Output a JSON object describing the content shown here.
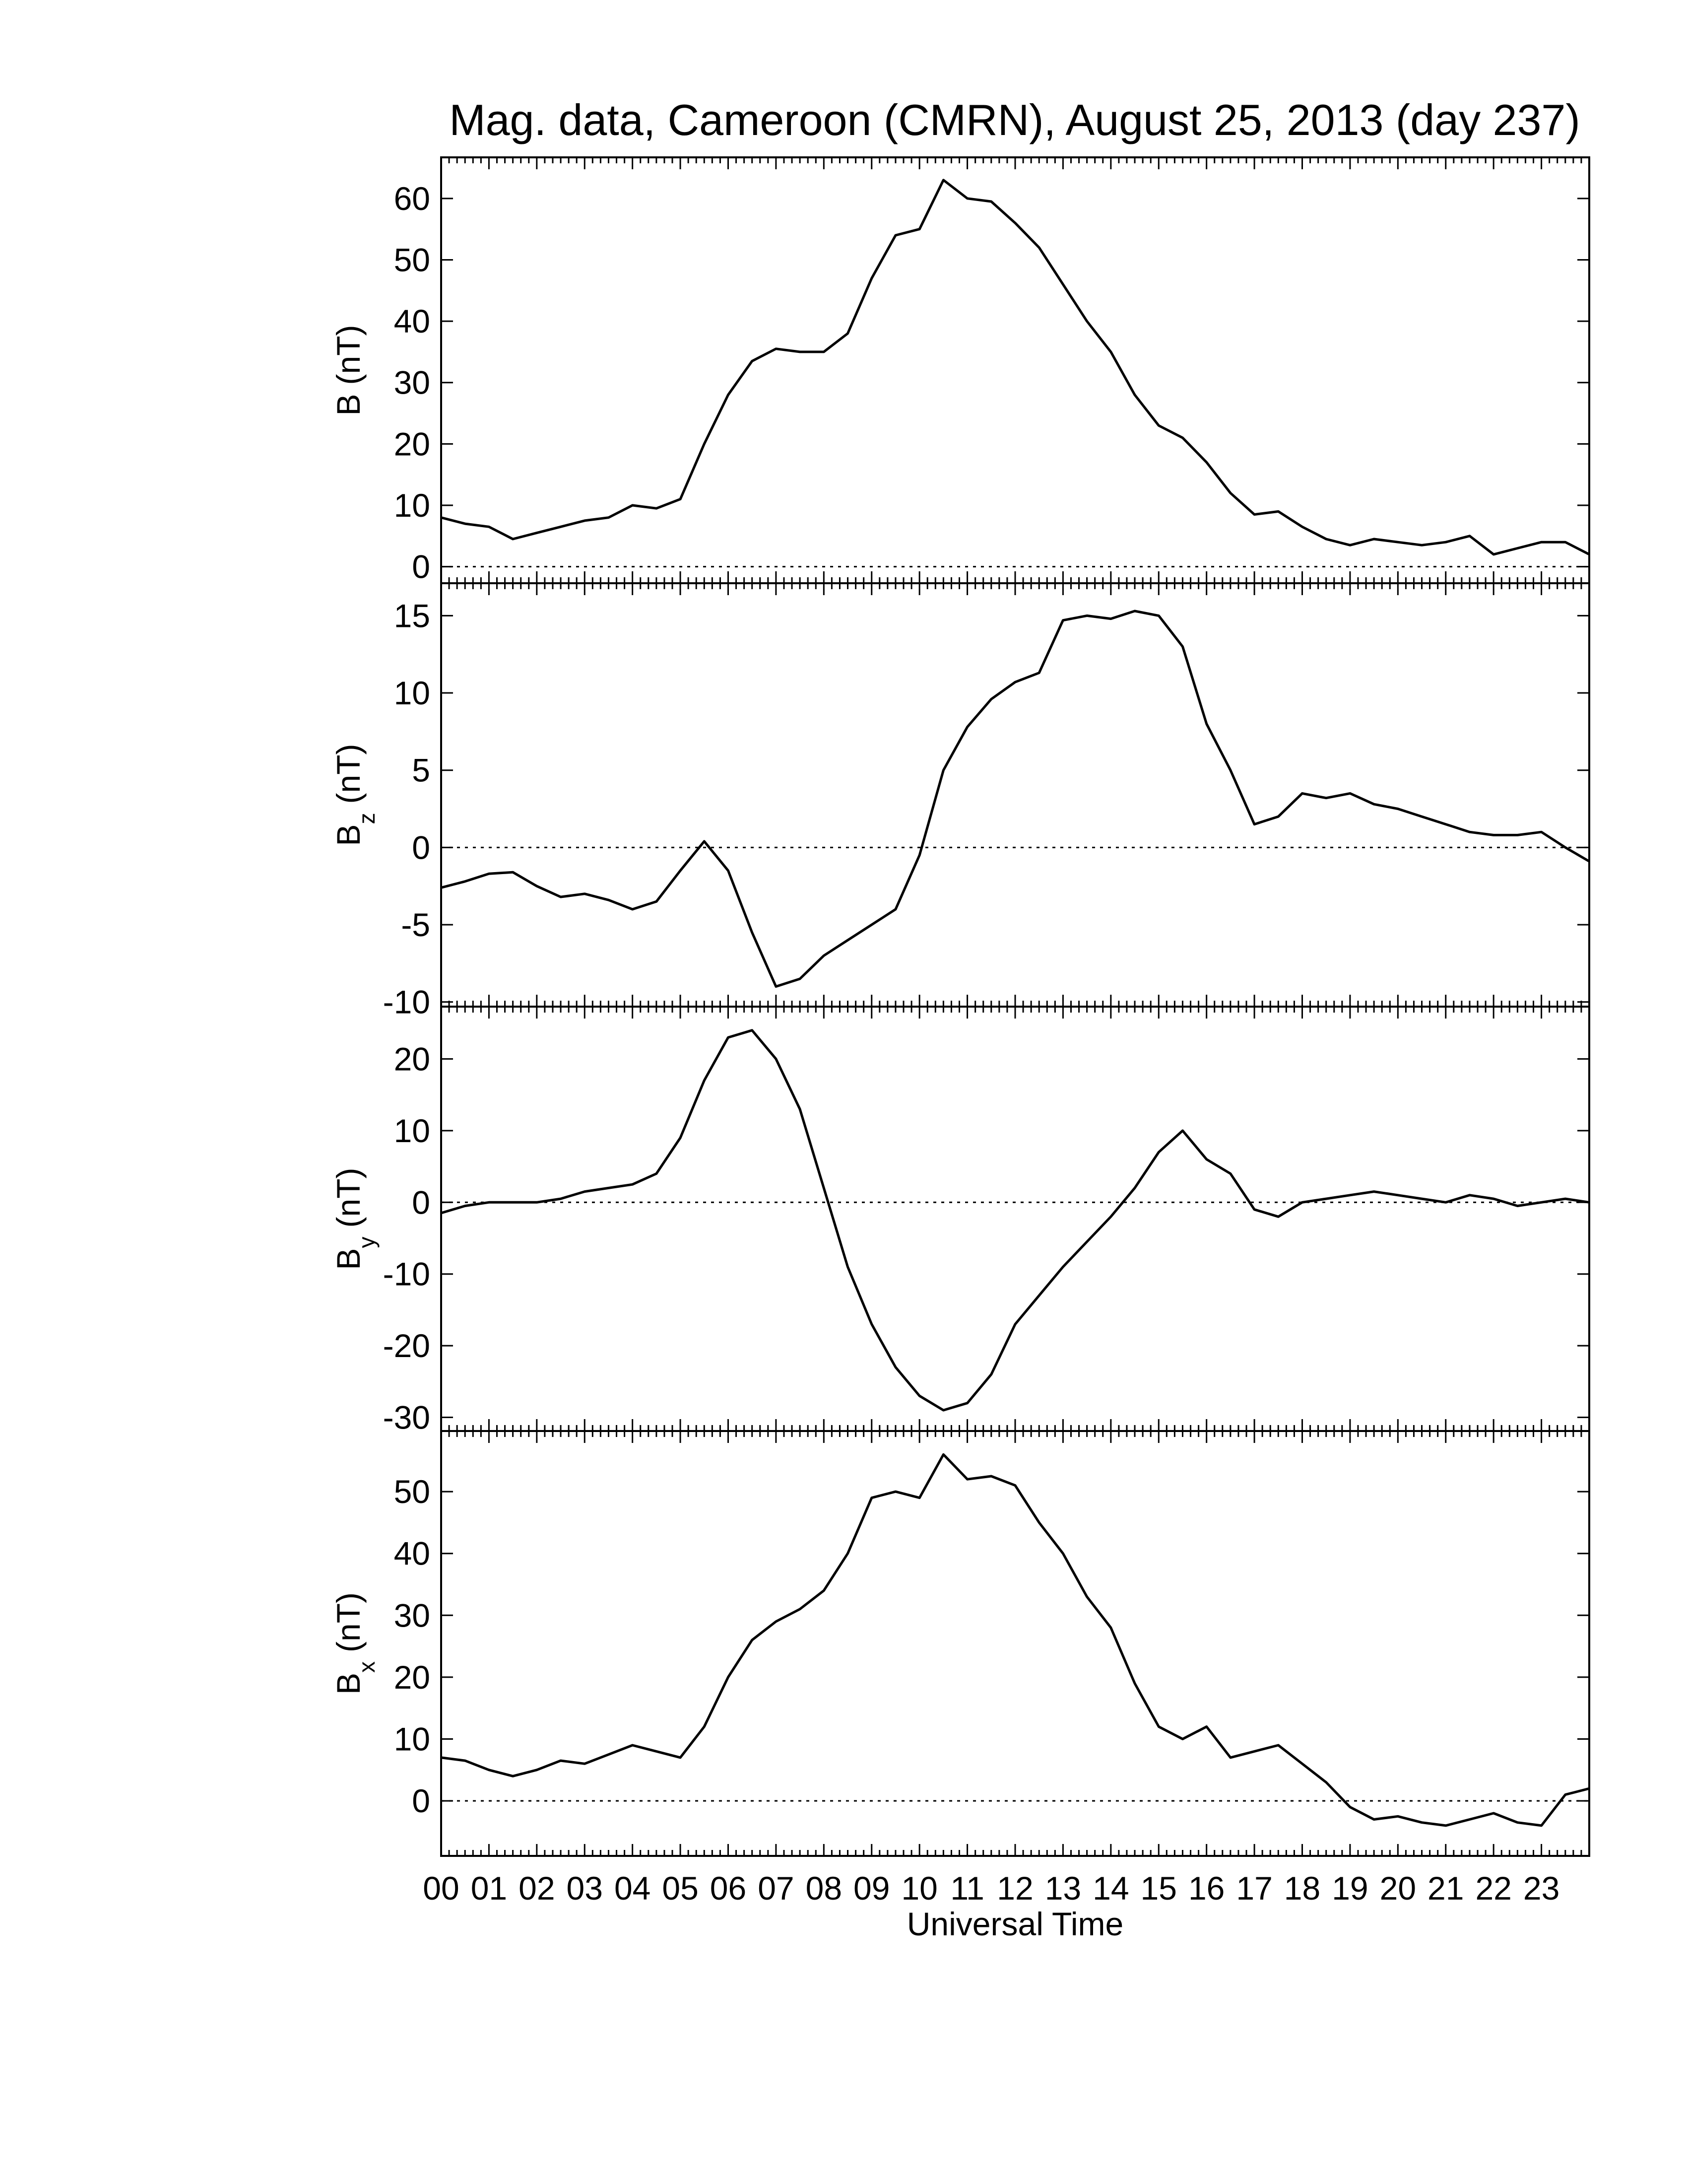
{
  "title": "Mag. data, Cameroon (CMRN), August 25, 2013 (day 237)",
  "chart_data": [
    {
      "type": "line",
      "ylabel": {
        "text": "B",
        "unit": "(nT)"
      },
      "color": "#000000",
      "zero_line": true,
      "minor_per_major": 6,
      "x": [
        0,
        0.5,
        1,
        1.5,
        2,
        2.5,
        3,
        3.5,
        4,
        4.5,
        5,
        5.5,
        6,
        6.5,
        7,
        7.5,
        8,
        8.5,
        9,
        9.5,
        10,
        10.5,
        11,
        11.5,
        12,
        12.5,
        13,
        13.5,
        14,
        14.5,
        15,
        15.5,
        16,
        16.5,
        17,
        17.5,
        18,
        18.5,
        19,
        19.5,
        20,
        20.5,
        21,
        21.5,
        22,
        22.5,
        23,
        23.5,
        24
      ],
      "values": [
        8,
        7,
        6.5,
        4.5,
        5.5,
        6.5,
        7.5,
        8,
        10,
        9.5,
        11,
        20,
        28,
        33.5,
        35.5,
        35,
        35,
        38,
        47,
        54,
        55,
        63,
        60,
        59.5,
        56,
        52,
        46,
        40,
        35,
        28,
        23,
        21,
        17,
        12,
        8.5,
        9,
        6.5,
        4.5,
        3.5,
        4.5,
        4,
        3.5,
        4,
        5,
        2,
        3,
        4,
        4,
        2
      ],
      "xlim": [
        0,
        24
      ],
      "xticks": [
        0,
        1,
        2,
        3,
        4,
        5,
        6,
        7,
        8,
        9,
        10,
        11,
        12,
        13,
        14,
        15,
        16,
        17,
        18,
        19,
        20,
        21,
        22,
        23
      ],
      "ylim": [
        -2.7,
        66.7
      ],
      "yticks": [
        0,
        10,
        20,
        30,
        40,
        50,
        60
      ]
    },
    {
      "type": "line",
      "ylabel": {
        "text": "B",
        "sub": "z",
        "unit": "(nT)"
      },
      "color": "#000000",
      "zero_line": true,
      "minor_per_major": 6,
      "x": [
        0,
        0.5,
        1,
        1.5,
        2,
        2.5,
        3,
        3.5,
        4,
        4.5,
        5,
        5.5,
        6,
        6.5,
        7,
        7.5,
        8,
        8.5,
        9,
        9.5,
        10,
        10.5,
        11,
        11.5,
        12,
        12.5,
        13,
        13.5,
        14,
        14.5,
        15,
        15.5,
        16,
        16.5,
        17,
        17.5,
        18,
        18.5,
        19,
        19.5,
        20,
        20.5,
        21,
        21.5,
        22,
        22.5,
        23,
        23.5,
        24
      ],
      "values": [
        -2.6,
        -2.2,
        -1.7,
        -1.6,
        -2.5,
        -3.2,
        -3,
        -3.4,
        -4,
        -3.5,
        -1.5,
        0.4,
        -1.5,
        -5.5,
        -9,
        -8.5,
        -7,
        -6,
        -5,
        -4,
        -0.5,
        5,
        7.8,
        9.6,
        10.7,
        11.3,
        14.7,
        15,
        14.8,
        15.3,
        15,
        13,
        8,
        5,
        1.5,
        2,
        3.5,
        3.2,
        3.5,
        2.8,
        2.5,
        2,
        1.5,
        1,
        0.8,
        0.8,
        1,
        0,
        -0.9
      ],
      "xlim": [
        0,
        24
      ],
      "xticks": [
        0,
        1,
        2,
        3,
        4,
        5,
        6,
        7,
        8,
        9,
        10,
        11,
        12,
        13,
        14,
        15,
        16,
        17,
        18,
        19,
        20,
        21,
        22,
        23
      ],
      "ylim": [
        -10.3,
        17.1
      ],
      "yticks": [
        -10,
        -5,
        0,
        5,
        10,
        15
      ]
    },
    {
      "type": "line",
      "ylabel": {
        "text": "B",
        "sub": "y",
        "unit": "(nT)"
      },
      "color": "#000000",
      "zero_line": true,
      "minor_per_major": 6,
      "x": [
        0,
        0.5,
        1,
        1.5,
        2,
        2.5,
        3,
        3.5,
        4,
        4.5,
        5,
        5.5,
        6,
        6.5,
        7,
        7.5,
        8,
        8.5,
        9,
        9.5,
        10,
        10.5,
        11,
        11.5,
        12,
        12.5,
        13,
        13.5,
        14,
        14.5,
        15,
        15.5,
        16,
        16.5,
        17,
        17.5,
        18,
        18.5,
        19,
        19.5,
        20,
        20.5,
        21,
        21.5,
        22,
        22.5,
        23,
        23.5,
        24
      ],
      "values": [
        -1.5,
        -0.5,
        0,
        0,
        0,
        0.5,
        1.5,
        2,
        2.5,
        4,
        9,
        17,
        23,
        24,
        20,
        13,
        2,
        -9,
        -17,
        -23,
        -27,
        -29,
        -28,
        -24,
        -17,
        -13,
        -9,
        -5.5,
        -2,
        2,
        7,
        10,
        6,
        4,
        -1,
        -2,
        0,
        0.5,
        1,
        1.5,
        1,
        0.5,
        0,
        1,
        0.5,
        -0.5,
        0,
        0.5,
        0
      ],
      "xlim": [
        0,
        24
      ],
      "xticks": [
        0,
        1,
        2,
        3,
        4,
        5,
        6,
        7,
        8,
        9,
        10,
        11,
        12,
        13,
        14,
        15,
        16,
        17,
        18,
        19,
        20,
        21,
        22,
        23
      ],
      "ylim": [
        -31.9,
        27.3
      ],
      "yticks": [
        -30,
        -20,
        -10,
        0,
        10,
        20
      ]
    },
    {
      "type": "line",
      "ylabel": {
        "text": "B",
        "sub": "x",
        "unit": "(nT)"
      },
      "color": "#000000",
      "zero_line": true,
      "minor_per_major": 6,
      "xlabel": "Universal Time",
      "x": [
        0,
        0.5,
        1,
        1.5,
        2,
        2.5,
        3,
        3.5,
        4,
        4.5,
        5,
        5.5,
        6,
        6.5,
        7,
        7.5,
        8,
        8.5,
        9,
        9.5,
        10,
        10.5,
        11,
        11.5,
        12,
        12.5,
        13,
        13.5,
        14,
        14.5,
        15,
        15.5,
        16,
        16.5,
        17,
        17.5,
        18,
        18.5,
        19,
        19.5,
        20,
        20.5,
        21,
        21.5,
        22,
        22.5,
        23,
        23.5,
        24
      ],
      "values": [
        7,
        6.5,
        5,
        4,
        5,
        6.5,
        6,
        7.5,
        9,
        8,
        7,
        12,
        20,
        26,
        29,
        31,
        34,
        40,
        49,
        50,
        49,
        56,
        52,
        52.5,
        51,
        45,
        40,
        33,
        28,
        19,
        12,
        10,
        12,
        7,
        8,
        9,
        6,
        3,
        -1,
        -3,
        -2.5,
        -3.5,
        -4,
        -3,
        -2,
        -3.5,
        -4,
        1,
        2
      ],
      "xlim": [
        0,
        24
      ],
      "xticks": [
        {
          "value": 0,
          "label": "00"
        },
        {
          "value": 1,
          "label": "01"
        },
        {
          "value": 2,
          "label": "02"
        },
        {
          "value": 3,
          "label": "03"
        },
        {
          "value": 4,
          "label": "04"
        },
        {
          "value": 5,
          "label": "05"
        },
        {
          "value": 6,
          "label": "06"
        },
        {
          "value": 7,
          "label": "07"
        },
        {
          "value": 8,
          "label": "08"
        },
        {
          "value": 9,
          "label": "09"
        },
        {
          "value": 10,
          "label": "10"
        },
        {
          "value": 11,
          "label": "11"
        },
        {
          "value": 12,
          "label": "12"
        },
        {
          "value": 13,
          "label": "13"
        },
        {
          "value": 14,
          "label": "14"
        },
        {
          "value": 15,
          "label": "15"
        },
        {
          "value": 16,
          "label": "16"
        },
        {
          "value": 17,
          "label": "17"
        },
        {
          "value": 18,
          "label": "18"
        },
        {
          "value": 19,
          "label": "19"
        },
        {
          "value": 20,
          "label": "20"
        },
        {
          "value": 21,
          "label": "21"
        },
        {
          "value": 22,
          "label": "22"
        },
        {
          "value": 23,
          "label": "23"
        }
      ],
      "ylim": [
        -8.9,
        59.8
      ],
      "yticks": [
        0,
        10,
        20,
        30,
        40,
        50
      ]
    }
  ]
}
